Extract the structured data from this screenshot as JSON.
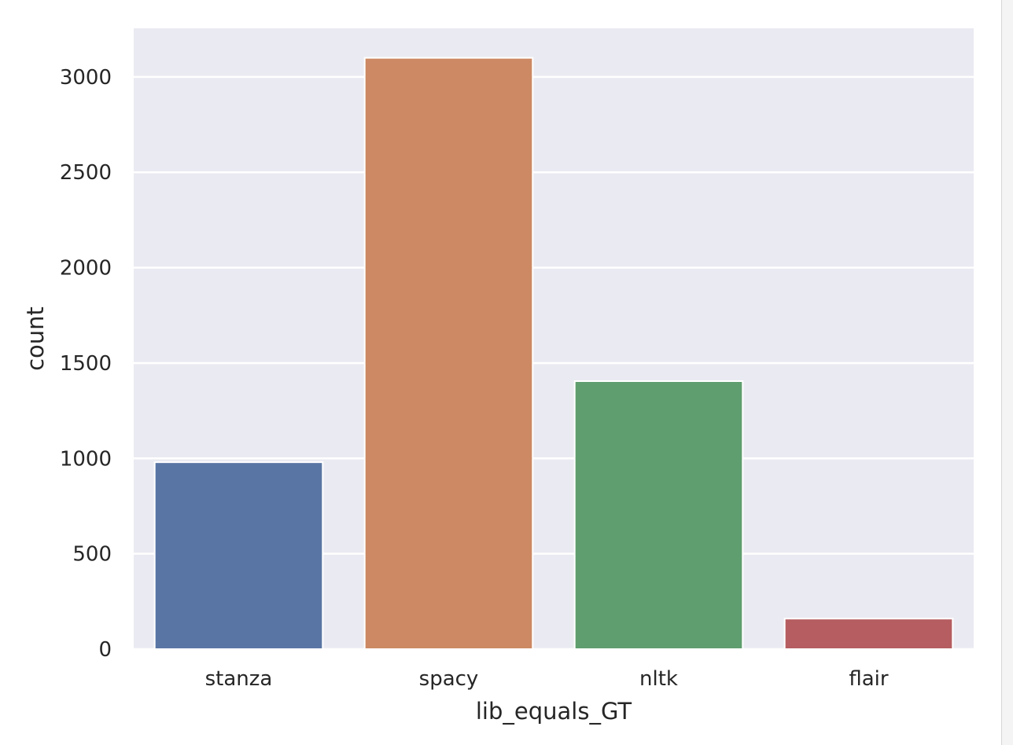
{
  "chart_data": {
    "type": "bar",
    "categories": [
      "stanza",
      "spacy",
      "nltk",
      "flair"
    ],
    "values": [
      980,
      3100,
      1405,
      160
    ],
    "colors": [
      "#5975a4",
      "#cc8963",
      "#5f9e6e",
      "#b55d60"
    ],
    "xlabel": "lib_equals_GT",
    "ylabel": "count",
    "ylim": [
      0,
      3255
    ],
    "yticks": [
      0,
      500,
      1000,
      1500,
      2000,
      2500,
      3000
    ],
    "grid": true,
    "style": {
      "plot_background": "#eaeaf2",
      "grid_color": "#ffffff",
      "text_color": "#262626"
    }
  }
}
